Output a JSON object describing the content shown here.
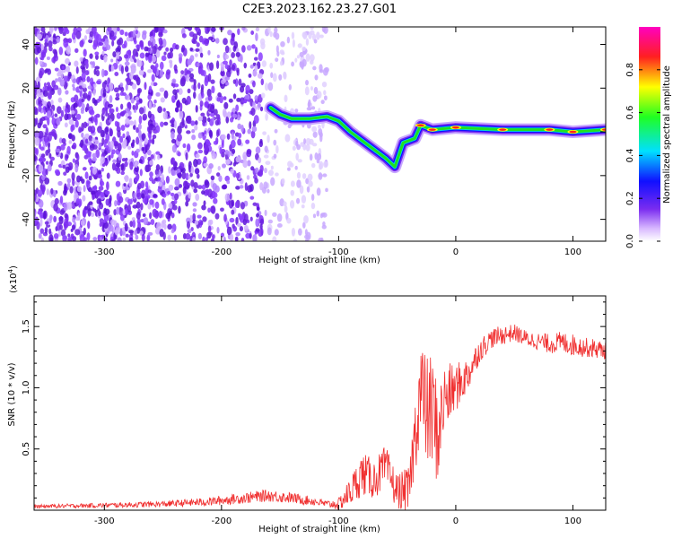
{
  "title": "C2E3.2023.162.23.27.G01",
  "colors": {
    "snr_line": "#f03030",
    "spectrogram_noise": "#7a2cf0",
    "axis": "#000000"
  },
  "chart_data": [
    {
      "type": "heatmap",
      "name": "spectrogram",
      "xlabel": "Height of straight line (km)",
      "ylabel": "Frequency (Hz)",
      "xlim": [
        -360,
        128
      ],
      "ylim": [
        -50,
        48
      ],
      "x_ticks": [
        -300,
        -200,
        -100,
        0,
        100
      ],
      "y_ticks": [
        -40,
        -20,
        0,
        20,
        40
      ],
      "colorbar": {
        "label": "Normalized spectral amplitude",
        "range": [
          0,
          1
        ],
        "ticks": [
          "0.0",
          "0.2",
          "0.4",
          "0.6",
          "0.8"
        ],
        "tick_values": [
          0.0,
          0.2,
          0.4,
          0.6,
          0.8
        ],
        "colormap": "rainbow (white → purple → blue → cyan → green → yellow → red → magenta)",
        "position": "right"
      },
      "signal_trace": [
        {
          "x": -158,
          "y": 11
        },
        {
          "x": -150,
          "y": 8
        },
        {
          "x": -140,
          "y": 6
        },
        {
          "x": -125,
          "y": 6
        },
        {
          "x": -110,
          "y": 7
        },
        {
          "x": -100,
          "y": 5
        },
        {
          "x": -90,
          "y": 0
        },
        {
          "x": -80,
          "y": -4
        },
        {
          "x": -70,
          "y": -8
        },
        {
          "x": -60,
          "y": -12
        },
        {
          "x": -52,
          "y": -16
        },
        {
          "x": -45,
          "y": -5
        },
        {
          "x": -35,
          "y": -3
        },
        {
          "x": -30,
          "y": 3
        },
        {
          "x": -20,
          "y": 1
        },
        {
          "x": 0,
          "y": 2
        },
        {
          "x": 40,
          "y": 1
        },
        {
          "x": 80,
          "y": 1
        },
        {
          "x": 100,
          "y": 0
        },
        {
          "x": 128,
          "y": 1
        }
      ]
    },
    {
      "type": "line",
      "name": "snr",
      "xlabel": "Height of straight line (km)",
      "ylabel": "SNR (10 * v/v)",
      "scale_label": "(x10",
      "scale_exponent": "4",
      "scale_suffix": ")",
      "xlim": [
        -360,
        128
      ],
      "ylim": [
        0,
        17500
      ],
      "x_ticks": [
        -300,
        -200,
        -100,
        0,
        100
      ],
      "y_ticks": [
        5000,
        10000,
        15000
      ],
      "y_tick_labels": [
        "0.5",
        "1.0",
        "1.5"
      ],
      "grid": false,
      "series": [
        {
          "x": [
            -360,
            -300,
            -250,
            -210,
            -180,
            -160,
            -140,
            -120,
            -110,
            -100,
            -90,
            -80,
            -70,
            -60,
            -50,
            -40,
            -35,
            -30,
            -25,
            -20,
            -15,
            -10,
            0,
            10,
            20,
            30,
            40,
            50,
            60,
            70,
            80,
            90,
            100,
            110,
            120,
            128
          ],
          "values": [
            300,
            400,
            500,
            700,
            1000,
            1200,
            1000,
            700,
            500,
            500,
            1500,
            3000,
            2500,
            3500,
            1500,
            1500,
            6000,
            10000,
            8000,
            8000,
            6000,
            9000,
            10000,
            11000,
            13000,
            14000,
            14300,
            14500,
            14000,
            13800,
            13600,
            13700,
            13500,
            13300,
            13200,
            13000
          ],
          "noise_amplitude": [
            150,
            200,
            250,
            350,
            450,
            500,
            450,
            350,
            300,
            500,
            1200,
            1800,
            1600,
            1800,
            1500,
            2000,
            3000,
            4500,
            4500,
            5000,
            4000,
            3000,
            2000,
            1500,
            1000,
            800,
            800,
            700,
            700,
            700,
            800,
            900,
            900,
            800,
            800,
            700
          ]
        }
      ]
    }
  ]
}
